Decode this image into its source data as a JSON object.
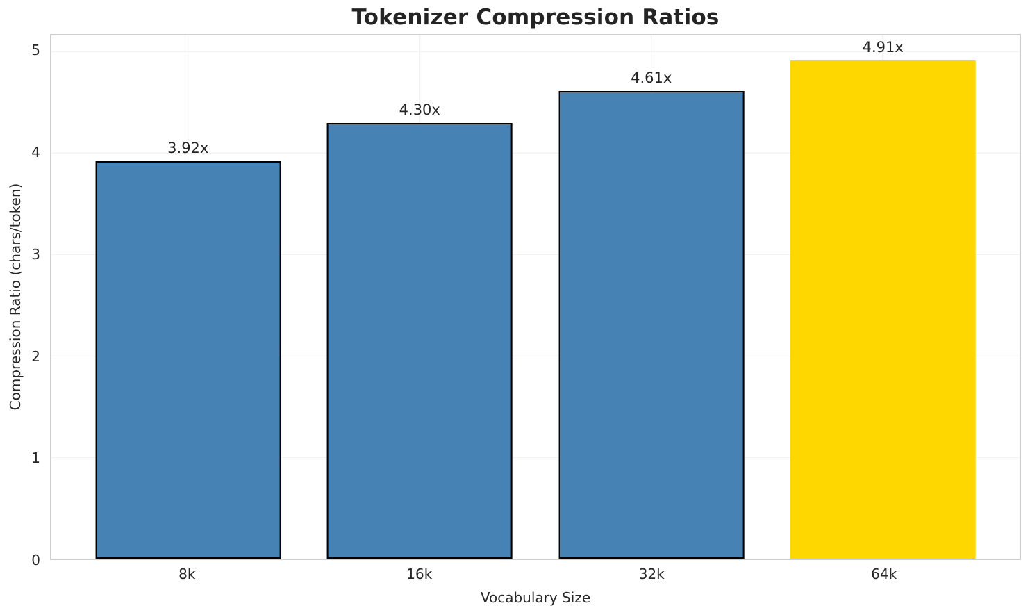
{
  "chart_data": {
    "type": "bar",
    "title": "Tokenizer Compression Ratios",
    "xlabel": "Vocabulary Size",
    "ylabel": "Compression Ratio (chars/token)",
    "categories": [
      "8k",
      "16k",
      "32k",
      "64k"
    ],
    "values": [
      3.92,
      4.3,
      4.61,
      4.91
    ],
    "bar_labels": [
      "3.92x",
      "4.30x",
      "4.61x",
      "4.91x"
    ],
    "bar_colors": [
      "#4682B4",
      "#4682B4",
      "#4682B4",
      "#FFD700"
    ],
    "bar_edge_colors": [
      "#000000",
      "#000000",
      "#000000",
      "#FFD700"
    ],
    "bar_width_data_units": 0.8,
    "yticks": [
      0,
      1,
      2,
      3,
      4,
      5
    ],
    "ylim": [
      0,
      5.16
    ],
    "xlim": [
      -0.59,
      3.59
    ],
    "grid": true,
    "legend_position": "none",
    "colors": {
      "background": "#ffffff",
      "spine": "#cfcfcf",
      "gridline": "#efefef",
      "text": "#262626",
      "highlight_bar": "#FFD700",
      "default_bar": "#4682B4"
    }
  }
}
